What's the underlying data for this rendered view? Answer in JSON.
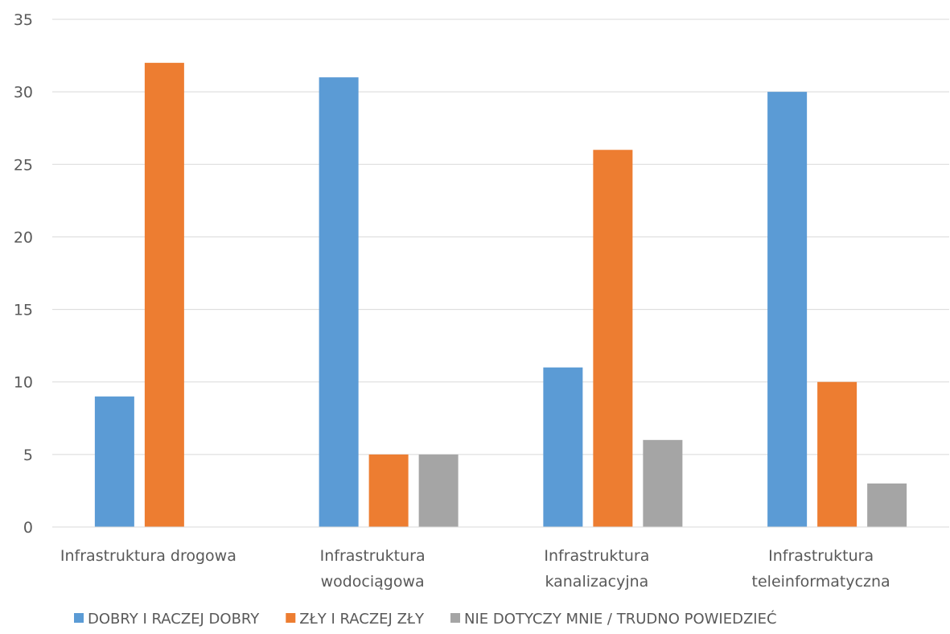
{
  "chart_data": {
    "type": "bar",
    "categories": [
      [
        "Infrastruktura drogowa"
      ],
      [
        "Infrastruktura",
        "wodociągowa"
      ],
      [
        "Infrastruktura",
        "kanalizacyjna"
      ],
      [
        "Infrastruktura",
        "teleinformatyczna"
      ]
    ],
    "series": [
      {
        "name": "DOBRY I RACZEJ DOBRY",
        "color": "#5b9bd5",
        "values": [
          9,
          31,
          11,
          30
        ]
      },
      {
        "name": "ZŁY I RACZEJ ZŁY",
        "color": "#ed7d31",
        "values": [
          32,
          5,
          26,
          10
        ]
      },
      {
        "name": "NIE DOTYCZY MNIE / TRUDNO POWIEDZIEĆ",
        "color": "#a5a5a5",
        "values": [
          0,
          5,
          6,
          3
        ]
      }
    ],
    "ylim": [
      0,
      35
    ],
    "yticks": [
      0,
      5,
      10,
      15,
      20,
      25,
      30,
      35
    ],
    "grid": true,
    "legend_position": "bottom",
    "title": "",
    "xlabel": "",
    "ylabel": ""
  }
}
